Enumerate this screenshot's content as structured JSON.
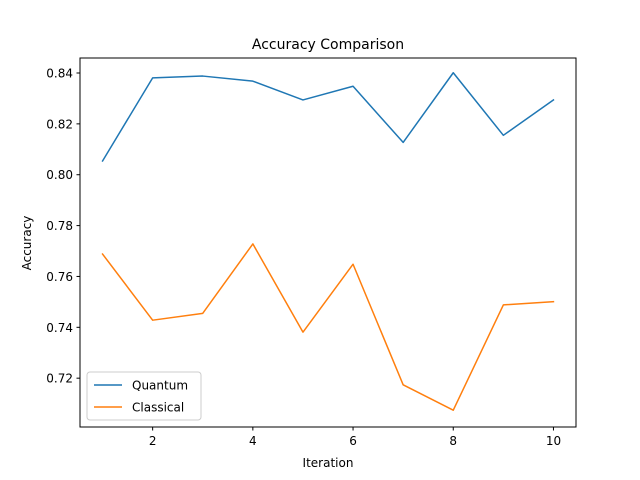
{
  "chart_data": {
    "type": "line",
    "title": "Accuracy Comparison",
    "xlabel": "Iteration",
    "ylabel": "Accuracy",
    "x": [
      1,
      2,
      3,
      4,
      5,
      6,
      7,
      8,
      9,
      10
    ],
    "xticks": [
      2,
      4,
      6,
      8,
      10
    ],
    "xtick_labels": [
      "2",
      "4",
      "6",
      "8",
      "10"
    ],
    "yticks": [
      0.72,
      0.74,
      0.76,
      0.78,
      0.8,
      0.82,
      0.84
    ],
    "ytick_labels": [
      "0.72",
      "0.74",
      "0.76",
      "0.78",
      "0.80",
      "0.82",
      "0.84"
    ],
    "xlim": [
      0.55,
      10.45
    ],
    "ylim": [
      0.7008,
      0.8459
    ],
    "grid": false,
    "legend_position": "lower-left",
    "series": [
      {
        "name": "Quantum",
        "color": "#1f77b4",
        "values": [
          0.8054,
          0.8381,
          0.8388,
          0.8368,
          0.8294,
          0.8348,
          0.8127,
          0.8401,
          0.8155,
          0.8294
        ]
      },
      {
        "name": "Classical",
        "color": "#ff7f0e",
        "values": [
          0.7688,
          0.7428,
          0.7455,
          0.7728,
          0.7381,
          0.7648,
          0.7174,
          0.7074,
          0.7488,
          0.7501
        ]
      }
    ]
  }
}
